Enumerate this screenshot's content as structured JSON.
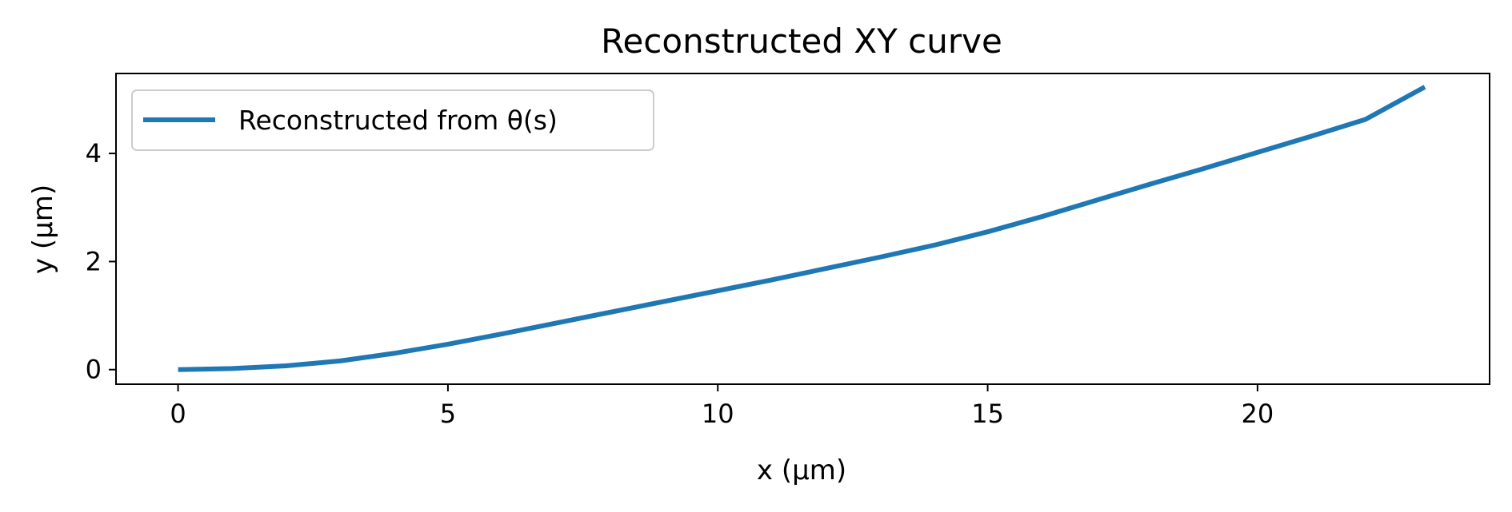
{
  "chart_data": {
    "type": "line",
    "title": "Reconstructed XY curve",
    "xlabel": "x (µm)",
    "ylabel": "y (µm)",
    "xlim": [
      -1.15,
      24.3
    ],
    "ylim": [
      -0.27,
      5.48
    ],
    "xticks": [
      0,
      5,
      10,
      15,
      20
    ],
    "yticks": [
      0,
      2,
      4
    ],
    "grid": false,
    "legend_position": "upper left",
    "series": [
      {
        "name": "Reconstructed from θ(s)",
        "color": "#1f77b4",
        "x": [
          0,
          1,
          2,
          3,
          4,
          5,
          6,
          7,
          8,
          9,
          10,
          11,
          12,
          13,
          14,
          15,
          16,
          17,
          18,
          19,
          20,
          21,
          22,
          23.1
        ],
        "y": [
          0,
          0.02,
          0.07,
          0.16,
          0.3,
          0.47,
          0.66,
          0.86,
          1.06,
          1.26,
          1.46,
          1.66,
          1.87,
          2.08,
          2.3,
          2.55,
          2.83,
          3.13,
          3.43,
          3.72,
          4.02,
          4.32,
          4.63,
          5.23
        ]
      }
    ]
  }
}
